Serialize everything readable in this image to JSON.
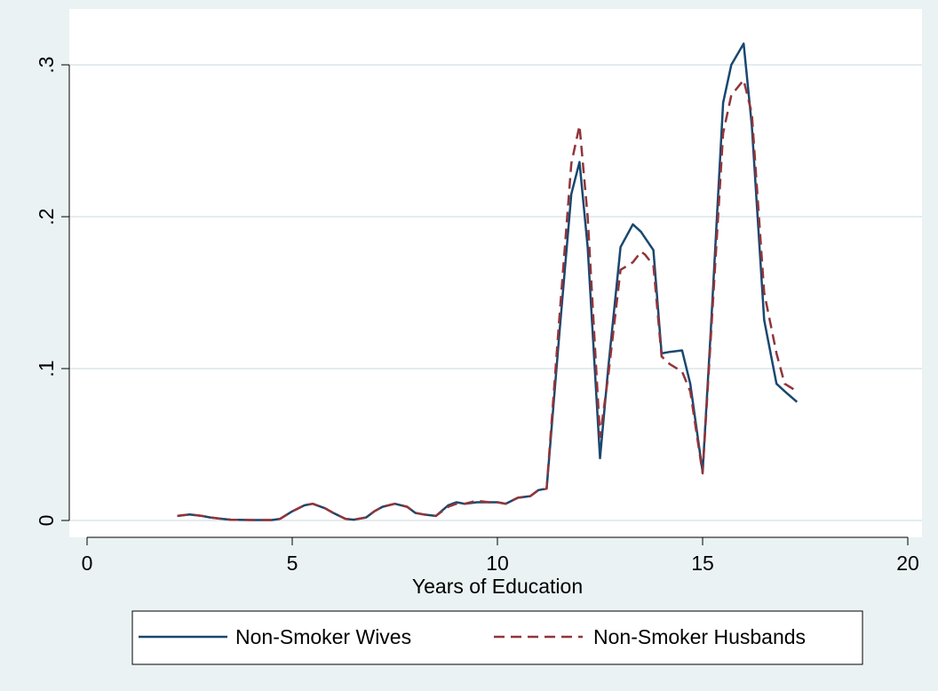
{
  "chart_data": {
    "type": "line",
    "title": "",
    "xlabel": "Years of Education",
    "ylabel": "",
    "xlim": [
      0,
      20
    ],
    "ylim": [
      0,
      0.3
    ],
    "x_ticks": [
      0,
      5,
      10,
      15,
      20
    ],
    "x_tick_labels": [
      "0",
      "5",
      "10",
      "15",
      "20"
    ],
    "y_ticks": [
      0,
      0.1,
      0.2,
      0.3
    ],
    "y_tick_labels": [
      "0",
      ".1",
      ".2",
      ".3"
    ],
    "grid": "horizontal",
    "legend_position": "bottom",
    "series": [
      {
        "name": "Non-Smoker Wives",
        "color": "#1a476f",
        "dash": "solid",
        "x": [
          2.2,
          2.5,
          2.8,
          3.0,
          3.3,
          3.5,
          4.0,
          4.5,
          4.7,
          5.0,
          5.3,
          5.5,
          5.8,
          6.0,
          6.3,
          6.5,
          6.8,
          7.0,
          7.2,
          7.5,
          7.8,
          8.0,
          8.2,
          8.5,
          8.8,
          9.0,
          9.2,
          9.5,
          9.8,
          10.0,
          10.2,
          10.5,
          10.8,
          11.0,
          11.2,
          11.5,
          11.8,
          12.0,
          12.2,
          12.5,
          12.7,
          13.0,
          13.3,
          13.5,
          13.6,
          13.8,
          14.0,
          14.2,
          14.5,
          14.7,
          15.0,
          15.2,
          15.5,
          15.7,
          16.0,
          16.2,
          16.5,
          16.8,
          17.0,
          17.3
        ],
        "y": [
          0.003,
          0.004,
          0.003,
          0.002,
          0.001,
          0.0005,
          0.0003,
          0.0003,
          0.001,
          0.006,
          0.01,
          0.011,
          0.008,
          0.005,
          0.001,
          0.0005,
          0.002,
          0.006,
          0.009,
          0.011,
          0.009,
          0.005,
          0.004,
          0.003,
          0.01,
          0.012,
          0.011,
          0.012,
          0.012,
          0.012,
          0.011,
          0.015,
          0.016,
          0.02,
          0.021,
          0.12,
          0.215,
          0.236,
          0.18,
          0.041,
          0.1,
          0.18,
          0.195,
          0.19,
          0.186,
          0.178,
          0.11,
          0.111,
          0.112,
          0.09,
          0.032,
          0.125,
          0.275,
          0.3,
          0.314,
          0.26,
          0.132,
          0.09,
          0.085,
          0.078
        ]
      },
      {
        "name": "Non-Smoker Husbands",
        "color": "#90353b",
        "dash": "dashed",
        "x": [
          2.2,
          2.5,
          2.8,
          3.0,
          3.3,
          3.5,
          4.0,
          4.5,
          4.7,
          5.0,
          5.3,
          5.5,
          5.8,
          6.0,
          6.3,
          6.5,
          6.8,
          7.0,
          7.2,
          7.5,
          7.8,
          8.0,
          8.2,
          8.5,
          8.8,
          9.0,
          9.2,
          9.5,
          9.8,
          10.0,
          10.2,
          10.5,
          10.8,
          11.0,
          11.2,
          11.5,
          11.8,
          12.0,
          12.2,
          12.5,
          12.7,
          13.0,
          13.3,
          13.5,
          13.6,
          13.8,
          14.0,
          14.2,
          14.5,
          14.7,
          15.0,
          15.2,
          15.5,
          15.7,
          16.0,
          16.2,
          16.5,
          16.8,
          17.0,
          17.3
        ],
        "y": [
          0.003,
          0.004,
          0.003,
          0.002,
          0.001,
          0.0005,
          0.0003,
          0.0003,
          0.001,
          0.006,
          0.01,
          0.011,
          0.008,
          0.005,
          0.001,
          0.0005,
          0.002,
          0.006,
          0.009,
          0.011,
          0.009,
          0.005,
          0.004,
          0.003,
          0.009,
          0.011,
          0.011,
          0.013,
          0.012,
          0.012,
          0.011,
          0.015,
          0.016,
          0.02,
          0.021,
          0.13,
          0.235,
          0.26,
          0.2,
          0.055,
          0.095,
          0.165,
          0.17,
          0.177,
          0.175,
          0.168,
          0.108,
          0.103,
          0.098,
          0.085,
          0.031,
          0.12,
          0.255,
          0.28,
          0.29,
          0.268,
          0.15,
          0.11,
          0.09,
          0.085
        ]
      }
    ]
  }
}
